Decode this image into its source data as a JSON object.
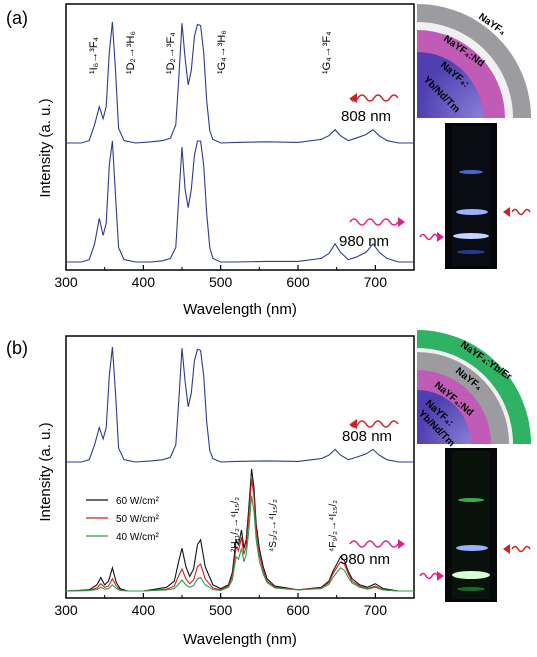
{
  "chart_data": [
    {
      "panel": "(a)",
      "type": "line",
      "xlabel": "Wavelength (nm)",
      "ylabel": "Intensity (a. u.)",
      "xlim": [
        300,
        750
      ],
      "xticks": [
        "300",
        "400",
        "500",
        "600",
        "700"
      ],
      "series": [
        {
          "name": "808 nm",
          "color": "#2c3c8c",
          "x": [
            300,
            320,
            330,
            337,
            343,
            348,
            352,
            356,
            360,
            364,
            368,
            375,
            390,
            410,
            425,
            435,
            442,
            446,
            450,
            454,
            458,
            462,
            466,
            470,
            474,
            478,
            482,
            486,
            490,
            500,
            520,
            560,
            600,
            630,
            640,
            648,
            655,
            665,
            675,
            688,
            697,
            705,
            715,
            730,
            750
          ],
          "y": [
            0,
            0,
            0.02,
            0.15,
            0.3,
            0.2,
            0.3,
            0.75,
            1.0,
            0.6,
            0.12,
            0.02,
            0,
            0.01,
            0.02,
            0.04,
            0.15,
            0.55,
            0.99,
            0.7,
            0.48,
            0.6,
            0.88,
            0.98,
            0.97,
            0.75,
            0.35,
            0.1,
            0.03,
            0,
            0.005,
            0.01,
            0.005,
            0.03,
            0.06,
            0.11,
            0.06,
            0.02,
            0.04,
            0.07,
            0.11,
            0.06,
            0.02,
            0,
            0
          ]
        },
        {
          "name": "980 nm",
          "color": "#2c3c8c",
          "x": [
            300,
            320,
            330,
            337,
            343,
            348,
            352,
            356,
            360,
            364,
            368,
            375,
            390,
            410,
            425,
            435,
            442,
            446,
            450,
            454,
            458,
            462,
            466,
            470,
            474,
            478,
            482,
            486,
            490,
            500,
            520,
            560,
            600,
            630,
            640,
            648,
            655,
            665,
            675,
            688,
            697,
            705,
            715,
            730,
            750
          ],
          "y": [
            0,
            0,
            0.02,
            0.15,
            0.36,
            0.22,
            0.32,
            0.8,
            1.0,
            0.55,
            0.12,
            0.02,
            0,
            0,
            0.01,
            0.03,
            0.12,
            0.55,
            0.95,
            0.6,
            0.45,
            0.6,
            0.88,
            1.0,
            1.0,
            0.8,
            0.4,
            0.12,
            0.03,
            0,
            0,
            0.005,
            0.005,
            0.03,
            0.07,
            0.15,
            0.08,
            0.02,
            0.04,
            0.08,
            0.15,
            0.08,
            0.03,
            0,
            0
          ]
        }
      ],
      "annotations": [
        {
          "label": "¹I₆→³F₄",
          "x": 343
        },
        {
          "label": "¹D₂→³H₆",
          "x": 360
        },
        {
          "label": "¹D₂→³F₄",
          "x": 450
        },
        {
          "label": "¹G₄→³H₆",
          "x": 475
        },
        {
          "label": "¹G₄→³F₄",
          "x": 647
        }
      ],
      "inset_shell_labels": [
        "NaYF₄",
        "NaYF₄:Nd",
        "NaYF₄:",
        "Yb/Nd/Tm"
      ]
    },
    {
      "panel": "(b)",
      "type": "line",
      "xlabel": "Wavelength (nm)",
      "ylabel": "Intensity (a. u.)",
      "xlim": [
        300,
        750
      ],
      "xticks": [
        "300",
        "400",
        "500",
        "600",
        "700"
      ],
      "legend": {
        "placement": "left",
        "entries": [
          "60 W/cm²",
          "50 W/cm²",
          "40 W/cm²"
        ]
      },
      "series": [
        {
          "name": "808 nm",
          "color": "#2c3c8c",
          "x": [
            300,
            320,
            330,
            337,
            343,
            348,
            352,
            356,
            360,
            364,
            368,
            375,
            390,
            410,
            425,
            435,
            442,
            446,
            450,
            454,
            458,
            462,
            466,
            470,
            474,
            478,
            482,
            486,
            490,
            500,
            520,
            560,
            600,
            630,
            640,
            648,
            655,
            665,
            675,
            688,
            697,
            705,
            715,
            730,
            750
          ],
          "y": [
            0,
            0,
            0.02,
            0.15,
            0.3,
            0.2,
            0.3,
            0.75,
            1.0,
            0.6,
            0.12,
            0.02,
            0,
            0.01,
            0.02,
            0.04,
            0.15,
            0.55,
            0.99,
            0.7,
            0.48,
            0.6,
            0.88,
            0.98,
            0.97,
            0.75,
            0.35,
            0.1,
            0.03,
            0,
            0.005,
            0.01,
            0.005,
            0.03,
            0.06,
            0.11,
            0.06,
            0.02,
            0.04,
            0.07,
            0.11,
            0.06,
            0.02,
            0,
            0
          ]
        },
        {
          "name": "60 W/cm²",
          "color": "#111111",
          "x": [
            300,
            330,
            340,
            345,
            350,
            355,
            360,
            365,
            370,
            380,
            400,
            430,
            440,
            446,
            450,
            455,
            460,
            465,
            470,
            474,
            480,
            490,
            500,
            510,
            515,
            520,
            523,
            527,
            530,
            533,
            536,
            540,
            543,
            546,
            550,
            555,
            560,
            570,
            600,
            630,
            640,
            645,
            650,
            655,
            660,
            665,
            670,
            680,
            690,
            700,
            710,
            730,
            750
          ],
          "y": [
            0,
            0.01,
            0.05,
            0.11,
            0.05,
            0.08,
            0.19,
            0.07,
            0.02,
            0,
            0,
            0.03,
            0.08,
            0.25,
            0.35,
            0.2,
            0.12,
            0.18,
            0.38,
            0.42,
            0.2,
            0.05,
            0.02,
            0.05,
            0.15,
            0.42,
            0.38,
            0.5,
            0.35,
            0.42,
            0.65,
            1.0,
            0.85,
            0.55,
            0.35,
            0.2,
            0.1,
            0.04,
            0.01,
            0.03,
            0.08,
            0.16,
            0.22,
            0.28,
            0.25,
            0.16,
            0.1,
            0.05,
            0.03,
            0.06,
            0.02,
            0,
            0
          ]
        },
        {
          "name": "50 W/cm²",
          "color": "#cc2222",
          "x": [
            300,
            330,
            340,
            345,
            350,
            355,
            360,
            365,
            370,
            380,
            400,
            430,
            440,
            446,
            450,
            455,
            460,
            465,
            470,
            474,
            480,
            490,
            500,
            510,
            515,
            520,
            523,
            527,
            530,
            533,
            536,
            540,
            543,
            546,
            550,
            555,
            560,
            570,
            600,
            630,
            640,
            645,
            650,
            655,
            660,
            665,
            670,
            680,
            690,
            700,
            710,
            730,
            750
          ],
          "y": [
            0,
            0.005,
            0.025,
            0.06,
            0.03,
            0.04,
            0.1,
            0.04,
            0.01,
            0,
            0,
            0.015,
            0.04,
            0.13,
            0.18,
            0.1,
            0.06,
            0.09,
            0.2,
            0.22,
            0.1,
            0.025,
            0.01,
            0.04,
            0.12,
            0.36,
            0.33,
            0.44,
            0.3,
            0.37,
            0.58,
            0.92,
            0.78,
            0.5,
            0.3,
            0.17,
            0.08,
            0.03,
            0.01,
            0.025,
            0.07,
            0.14,
            0.19,
            0.24,
            0.22,
            0.14,
            0.08,
            0.04,
            0.02,
            0.04,
            0.01,
            0,
            0
          ]
        },
        {
          "name": "40 W/cm²",
          "color": "#2e9b4e",
          "x": [
            300,
            330,
            340,
            345,
            350,
            355,
            360,
            365,
            370,
            380,
            400,
            430,
            440,
            446,
            450,
            455,
            460,
            465,
            470,
            474,
            480,
            490,
            500,
            510,
            515,
            520,
            523,
            527,
            530,
            533,
            536,
            540,
            543,
            546,
            550,
            555,
            560,
            570,
            600,
            630,
            640,
            645,
            650,
            655,
            660,
            665,
            670,
            680,
            690,
            700,
            710,
            730,
            750
          ],
          "y": [
            0,
            0.003,
            0.012,
            0.03,
            0.015,
            0.02,
            0.05,
            0.02,
            0.005,
            0,
            0,
            0.008,
            0.02,
            0.06,
            0.09,
            0.05,
            0.03,
            0.045,
            0.1,
            0.11,
            0.05,
            0.012,
            0.005,
            0.03,
            0.09,
            0.28,
            0.26,
            0.35,
            0.24,
            0.3,
            0.47,
            0.78,
            0.66,
            0.42,
            0.25,
            0.14,
            0.07,
            0.025,
            0.008,
            0.02,
            0.055,
            0.11,
            0.15,
            0.19,
            0.17,
            0.11,
            0.065,
            0.03,
            0.015,
            0.03,
            0.008,
            0,
            0
          ]
        }
      ],
      "annotations": [
        {
          "label": "²H₁₁/₂→⁴I₁₅/₂",
          "x": 521
        },
        {
          "label": "⁴S₃/₂→⁴I₁₅/₂",
          "x": 541
        },
        {
          "label": "⁴F₉/₂→⁴I₁₅/₂",
          "x": 655
        }
      ],
      "inset_shell_labels": [
        "NaYF₄:Yb/Er",
        "NaYF₄",
        "NaYF₄:Nd",
        "NaYF₄:",
        "Yb/Nd/Tm"
      ]
    }
  ],
  "labels": {
    "panel_a": "(a)",
    "panel_b": "(b)",
    "a_808": "808 nm",
    "a_980": "980 nm",
    "b_808": "808 nm",
    "b_980": "980 nm"
  }
}
